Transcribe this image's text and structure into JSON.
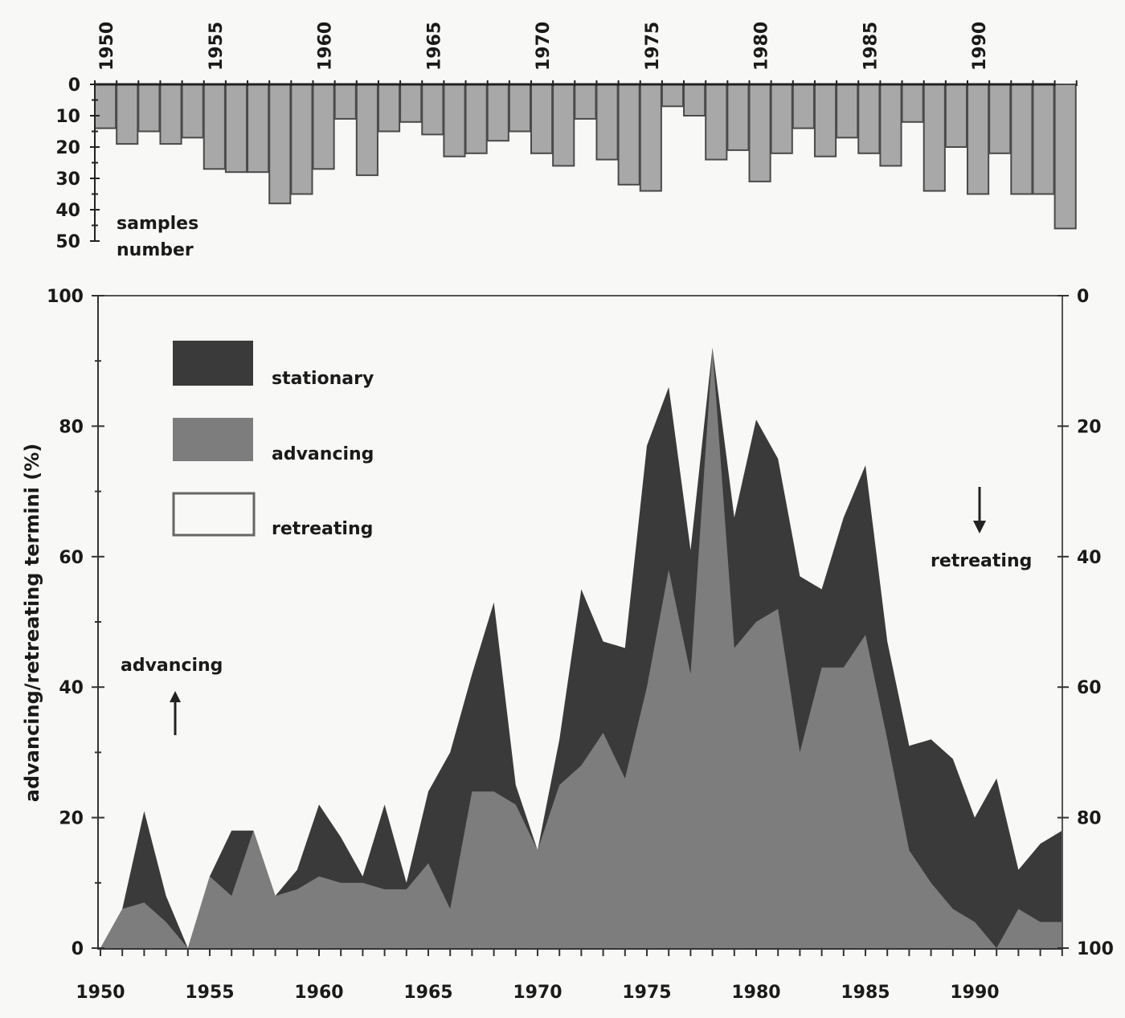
{
  "colors": {
    "stationary": "#3a3a3a",
    "advancing": "#7d7d7d",
    "retreating": "#f8f8f6",
    "bars": "#a8a8a8",
    "axis": "#222222"
  },
  "chart_data": [
    {
      "type": "bar",
      "title": "",
      "orientation": "downward",
      "xlabel": "",
      "ylabel": "samples number",
      "ylim": [
        0,
        50
      ],
      "yticks": [
        0,
        10,
        20,
        30,
        40,
        50
      ],
      "xtick_labels": [
        "1950",
        "1955",
        "1960",
        "1965",
        "1970",
        "1975",
        "1980",
        "1985",
        "1990"
      ],
      "annotation": [
        "samples",
        "number"
      ],
      "categories": [
        1950,
        1951,
        1952,
        1953,
        1954,
        1955,
        1956,
        1957,
        1958,
        1959,
        1960,
        1961,
        1962,
        1963,
        1964,
        1965,
        1966,
        1967,
        1968,
        1969,
        1970,
        1971,
        1972,
        1973,
        1974,
        1975,
        1976,
        1977,
        1978,
        1979,
        1980,
        1981,
        1982,
        1983,
        1984,
        1985,
        1986,
        1987,
        1988,
        1989,
        1990,
        1991,
        1992,
        1993,
        1994
      ],
      "values": [
        14,
        19,
        15,
        19,
        17,
        27,
        28,
        28,
        38,
        35,
        27,
        11,
        29,
        15,
        12,
        16,
        23,
        22,
        18,
        15,
        22,
        26,
        11,
        24,
        32,
        34,
        7,
        10,
        24,
        21,
        31,
        22,
        14,
        23,
        17,
        22,
        26,
        12,
        34,
        20,
        35,
        22,
        35,
        35,
        46
      ]
    },
    {
      "type": "area",
      "stacked": true,
      "title": "",
      "xlabel": "",
      "ylabel": "advancing/retreating termini (%)",
      "ylim": [
        0,
        100
      ],
      "yticks_left": [
        0,
        20,
        40,
        60,
        80,
        100
      ],
      "yticks_right": [
        100,
        80,
        60,
        40,
        20,
        0
      ],
      "xtick_labels": [
        "1950",
        "1955",
        "1960",
        "1965",
        "1970",
        "1975",
        "1980",
        "1985",
        "1990"
      ],
      "legend": {
        "position": "upper-left",
        "entries": [
          "stationary",
          "advancing",
          "retreating"
        ]
      },
      "annotations": {
        "advancing": "advancing",
        "retreating": "retreating"
      },
      "x": [
        1950,
        1951,
        1952,
        1953,
        1954,
        1955,
        1956,
        1957,
        1958,
        1959,
        1960,
        1961,
        1962,
        1963,
        1964,
        1965,
        1966,
        1967,
        1968,
        1969,
        1970,
        1971,
        1972,
        1973,
        1974,
        1975,
        1976,
        1977,
        1978,
        1979,
        1980,
        1981,
        1982,
        1983,
        1984,
        1985,
        1986,
        1987,
        1988,
        1989,
        1990,
        1991,
        1992,
        1993,
        1994
      ],
      "series": [
        {
          "name": "advancing",
          "values": [
            0,
            6,
            7,
            4,
            0,
            11,
            8,
            18,
            8,
            9,
            11,
            10,
            10,
            9,
            9,
            13,
            6,
            24,
            24,
            22,
            15,
            25,
            28,
            33,
            26,
            40,
            58,
            42,
            92,
            46,
            50,
            52,
            30,
            43,
            43,
            48,
            32,
            15,
            10,
            6,
            4,
            0,
            6,
            4,
            4
          ]
        },
        {
          "name": "stationary",
          "values": [
            0,
            0,
            14,
            4,
            0,
            0,
            10,
            0,
            0,
            3,
            11,
            7,
            1,
            13,
            1,
            11,
            24,
            18,
            29,
            3,
            0,
            7,
            27,
            14,
            20,
            37,
            28,
            19,
            0,
            20,
            31,
            23,
            27,
            12,
            23,
            26,
            15,
            16,
            22,
            23,
            16,
            26,
            6,
            12,
            14
          ]
        },
        {
          "name": "retreating",
          "values": [
            100,
            94,
            79,
            92,
            100,
            89,
            82,
            82,
            92,
            88,
            78,
            83,
            89,
            78,
            90,
            76,
            70,
            58,
            47,
            75,
            85,
            68,
            45,
            53,
            54,
            23,
            14,
            39,
            8,
            34,
            19,
            25,
            43,
            45,
            34,
            26,
            53,
            69,
            68,
            71,
            80,
            74,
            88,
            84,
            82
          ]
        }
      ]
    }
  ]
}
